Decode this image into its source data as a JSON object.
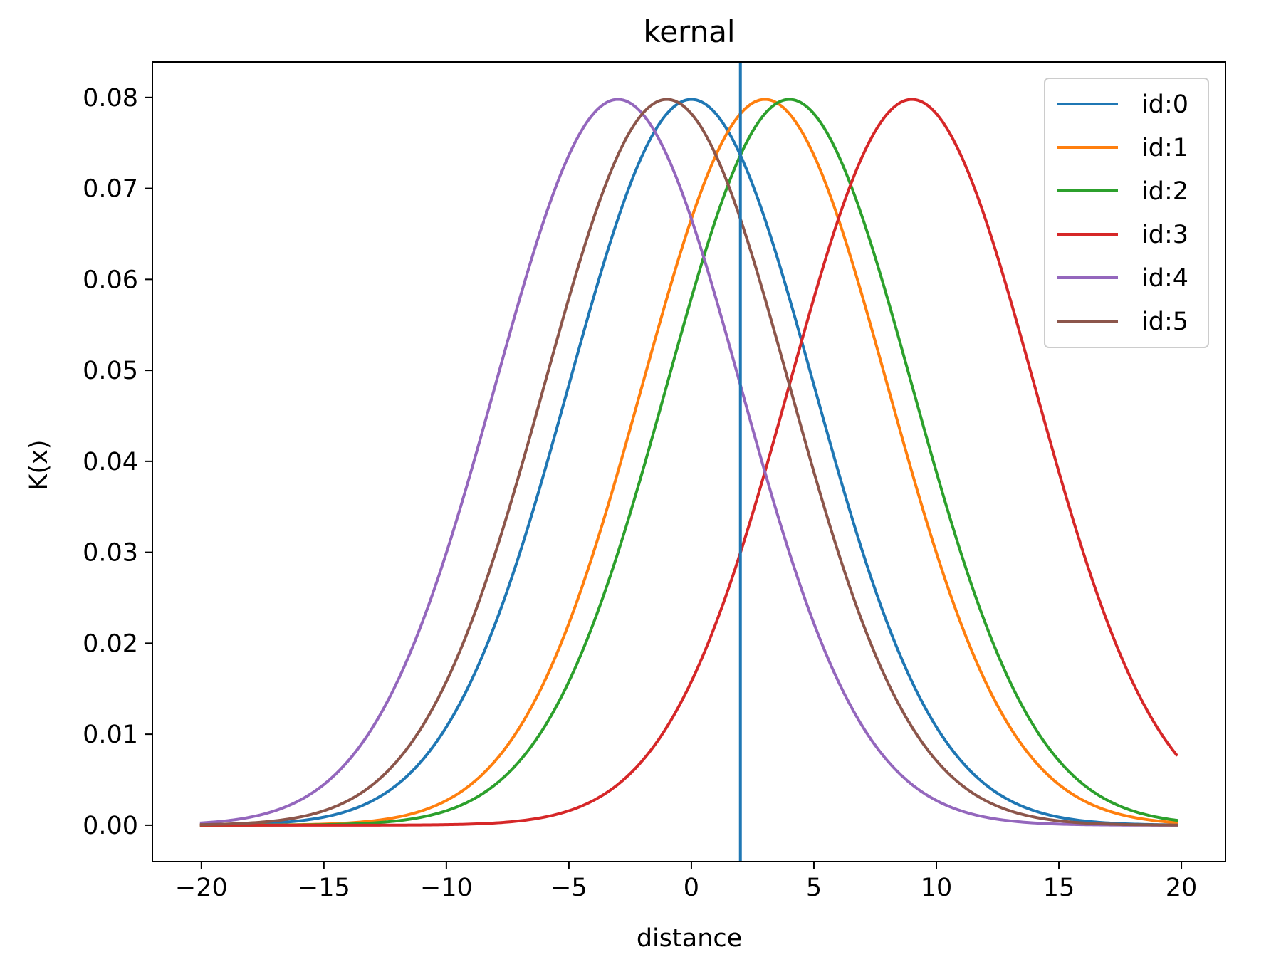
{
  "chart_data": {
    "type": "line",
    "title": "kernal",
    "xlabel": "distance",
    "ylabel": "K(x)",
    "xlim": [
      -22,
      21.8
    ],
    "ylim": [
      -0.004,
      0.0839
    ],
    "x_ticks": [
      -20,
      -15,
      -10,
      -5,
      0,
      5,
      10,
      15,
      20
    ],
    "x_tick_labels": [
      "−20",
      "−15",
      "−10",
      "−5",
      "0",
      "5",
      "10",
      "15",
      "20"
    ],
    "y_ticks": [
      0.0,
      0.01,
      0.02,
      0.03,
      0.04,
      0.05,
      0.06,
      0.07,
      0.08
    ],
    "y_tick_labels": [
      "0.00",
      "0.01",
      "0.02",
      "0.03",
      "0.04",
      "0.05",
      "0.06",
      "0.07",
      "0.08"
    ],
    "x_range": [
      -20,
      19.8
    ],
    "curve_shape": "gaussian",
    "std_dev": 5,
    "peak_value": 0.0798,
    "grid": false,
    "legend_position": "top-right",
    "vertical_line": {
      "x": 2,
      "color": "#1f77b4"
    },
    "series": [
      {
        "name": "id:0",
        "mean": 0,
        "color": "#1f77b4"
      },
      {
        "name": "id:1",
        "mean": 3,
        "color": "#ff7f0e"
      },
      {
        "name": "id:2",
        "mean": 4,
        "color": "#2ca02c"
      },
      {
        "name": "id:3",
        "mean": 9,
        "color": "#d62728"
      },
      {
        "name": "id:4",
        "mean": -3,
        "color": "#9467bd"
      },
      {
        "name": "id:5",
        "mean": -1,
        "color": "#8c564b"
      }
    ]
  }
}
